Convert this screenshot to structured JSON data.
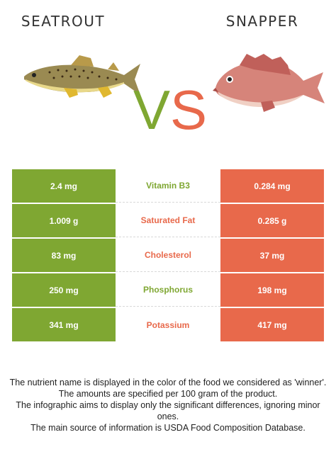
{
  "left_food": {
    "name": "SEATROUT",
    "color": "#7fa732"
  },
  "right_food": {
    "name": "SNAPPER",
    "color": "#e8694b"
  },
  "vs_text": "VS",
  "rows": [
    {
      "left": "2.4 mg",
      "nutrient": "Vitamin B3",
      "winner": "left",
      "right": "0.284 mg"
    },
    {
      "left": "1.009 g",
      "nutrient": "Saturated Fat",
      "winner": "right",
      "right": "0.285 g"
    },
    {
      "left": "83 mg",
      "nutrient": "Cholesterol",
      "winner": "right",
      "right": "37 mg"
    },
    {
      "left": "250 mg",
      "nutrient": "Phosphorus",
      "winner": "left",
      "right": "198 mg"
    },
    {
      "left": "341 mg",
      "nutrient": "Potassium",
      "winner": "right",
      "right": "417 mg"
    }
  ],
  "footer": {
    "line1": "The nutrient name is displayed in the color of the food we considered as 'winner'.",
    "line2": "The amounts are specified per 100 gram of the product.",
    "line3": "The infographic aims to display only the significant differences, ignoring minor ones.",
    "line4": "The main source of information is USDA Food Composition Database."
  }
}
